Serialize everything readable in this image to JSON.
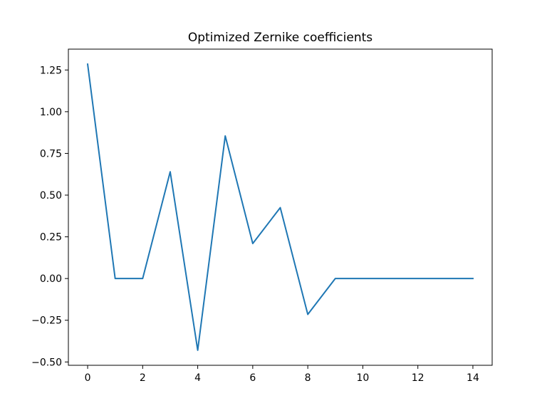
{
  "chart_data": {
    "type": "line",
    "title": "Optimized Zernike coefficients",
    "xlabel": "",
    "ylabel": "",
    "x": [
      0,
      1,
      2,
      3,
      4,
      5,
      6,
      7,
      8,
      9,
      10,
      11,
      12,
      13,
      14
    ],
    "series": [
      {
        "values": [
          1.285,
          0.0,
          0.0,
          0.64,
          -0.43,
          0.855,
          0.21,
          0.425,
          -0.215,
          0.0,
          0.0,
          0.0,
          0.0,
          0.0,
          0.0
        ],
        "color": "#1f77b4"
      }
    ],
    "xlim": [
      -0.7,
      14.7
    ],
    "ylim": [
      -0.52,
      1.375
    ],
    "xticks": [
      0,
      2,
      4,
      6,
      8,
      10,
      12,
      14
    ],
    "xtick_labels": [
      "0",
      "2",
      "4",
      "6",
      "8",
      "10",
      "12",
      "14"
    ],
    "yticks": [
      -0.5,
      -0.25,
      0.0,
      0.25,
      0.5,
      0.75,
      1.0,
      1.25
    ],
    "ytick_labels": [
      "−0.50",
      "−0.25",
      "0.00",
      "0.25",
      "0.50",
      "0.75",
      "1.00",
      "1.25"
    ],
    "grid": false,
    "legend": "none"
  }
}
